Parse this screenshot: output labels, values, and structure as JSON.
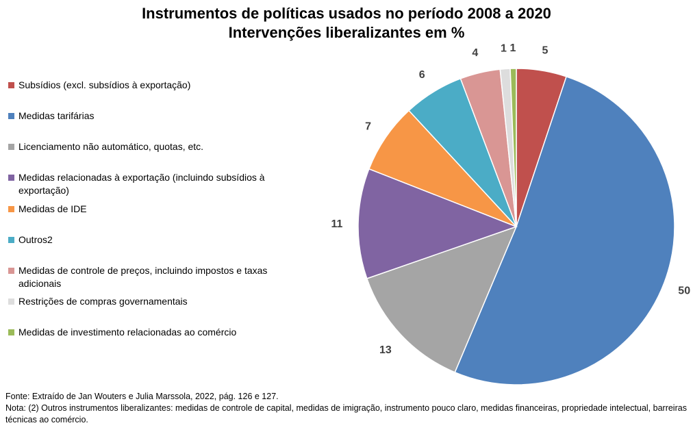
{
  "chart_data": {
    "type": "pie",
    "title": "Instrumentos de políticas usados no período 2008 a 2020",
    "subtitle": "Intervenções liberalizantes em %",
    "slices": [
      {
        "label": "Subsídios (excl. subsídios à exportação)",
        "value": 5,
        "display": "5",
        "color": "#c0504d"
      },
      {
        "label": "Medidas tarifárias",
        "value": 50,
        "display": "50",
        "color": "#4f81bd"
      },
      {
        "label": "Licenciamento não automático, quotas, etc.",
        "value": 13,
        "display": "13",
        "color": "#a5a5a5"
      },
      {
        "label": "Medidas relacionadas à exportação (incluindo subsídios à exportação)",
        "value": 11,
        "display": "11",
        "color": "#8064a2"
      },
      {
        "label": "Medidas de IDE",
        "value": 7,
        "display": "7",
        "color": "#f79646"
      },
      {
        "label": "Outros2",
        "value": 6,
        "display": "6",
        "color": "#4bacc6"
      },
      {
        "label": "Medidas de controle de preços, incluindo impostos e taxas adicionais",
        "value": 4,
        "display": "4",
        "color": "#d99694"
      },
      {
        "label": "Restrições de compras governamentais",
        "value": 1,
        "display": "1",
        "color": "#dddddd"
      },
      {
        "label": "Medidas de investimento relacionadas ao comércio",
        "value": 0.6,
        "display": "1",
        "color": "#9bbb59"
      }
    ],
    "legend_position": "left"
  },
  "footer": {
    "source": "Fonte: Extraído de Jan Wouters e Julia Marssola, 2022,  pág. 126  e 127.",
    "note": "Nota: (2) Outros instrumentos liberalizantes: medidas de controle de capital, medidas de imigração, instrumento pouco claro, medidas financeiras, propriedade intelectual, barreiras técnicas ao comércio."
  }
}
